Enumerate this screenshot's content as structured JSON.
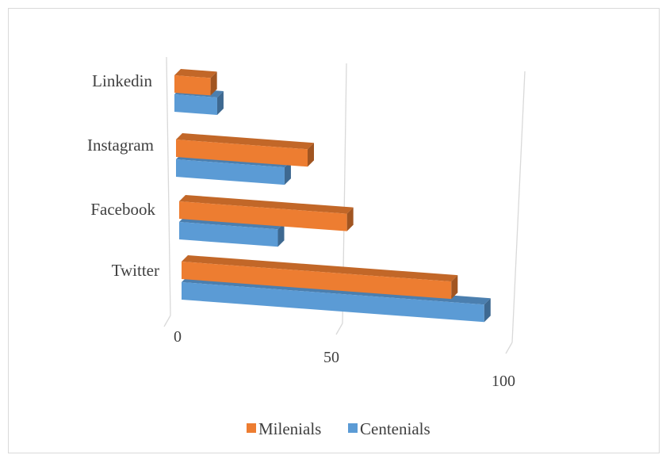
{
  "chart_data": {
    "type": "bar",
    "orientation": "horizontal",
    "style": "3d",
    "title": "",
    "xlabel": "",
    "ylabel": "",
    "categories": [
      "Linkedin",
      "Instagram",
      "Facebook",
      "Twitter"
    ],
    "series": [
      {
        "name": "Milenials",
        "color": "#ed7d31",
        "values": [
          11,
          40,
          51,
          82
        ]
      },
      {
        "name": "Centenials",
        "color": "#5b9bd5",
        "values": [
          13,
          33,
          30,
          92
        ]
      }
    ],
    "xlim": [
      0,
      100
    ],
    "x_ticks": [
      "0",
      "50",
      "100"
    ],
    "grid": true,
    "legend": "bottom"
  }
}
